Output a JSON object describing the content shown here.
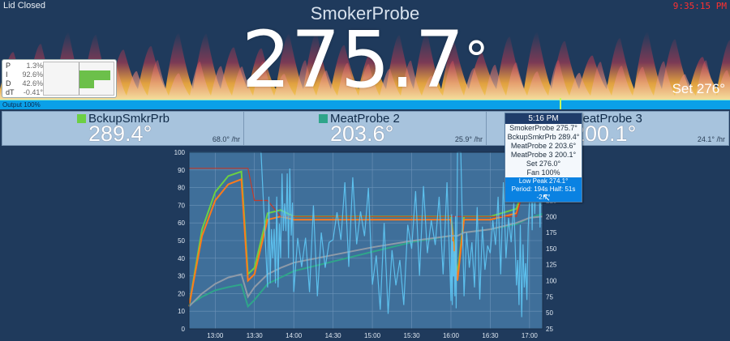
{
  "status": {
    "lid": "Lid Closed",
    "clock": "9:35:15 PM"
  },
  "hero": {
    "title": "SmokerProbe",
    "temperature": "275.7",
    "degree": "°",
    "setpoint": "Set 276°"
  },
  "pid": {
    "rows": [
      {
        "label": "P",
        "value": "1.3%"
      },
      {
        "label": "I",
        "value": "92.6%"
      },
      {
        "label": "D",
        "value": "42.6%"
      },
      {
        "label": "dT",
        "value": "-0.41°"
      }
    ],
    "bar_colors": {
      "fill": "#6cc04a",
      "frame": "#bbbbbb"
    }
  },
  "output": {
    "label": "Output 100%",
    "percent": 100,
    "marker_color": "#c7ff5c"
  },
  "probes": [
    {
      "name": "BckupSmkrPrb",
      "value": "289.4°",
      "rate": "68.0° /hr",
      "color": "#6cd043"
    },
    {
      "name": "MeatProbe 2",
      "value": "203.6°",
      "rate": "25.9° /hr",
      "color": "#2fa58a"
    },
    {
      "name": "MeatProbe 3",
      "value": "200.1°",
      "rate": "24.1° /hr",
      "color": "#8fb7d6"
    }
  ],
  "tooltip": {
    "time": "5:16 PM",
    "lines": [
      "SmokerProbe 275.7°",
      "BckupSmkrPrb 289.4°",
      "MeatProbe 2 203.6°",
      "MeatProbe 3 200.1°",
      "Set 276.0°",
      "Fan 100%"
    ],
    "peak1": "Low Peak 274.1°",
    "peak2": "Period: 194s Half: 51s -2.7°"
  },
  "chart_data": {
    "type": "line",
    "x": [
      "12:40",
      "12:50",
      "13:00",
      "13:10",
      "13:20",
      "13:25",
      "13:30",
      "13:40",
      "13:50",
      "14:00",
      "14:30",
      "15:00",
      "15:30",
      "16:00",
      "16:05",
      "16:10",
      "16:30",
      "16:50",
      "17:00",
      "17:10"
    ],
    "x_ticks": [
      "13:00",
      "13:30",
      "14:00",
      "14:30",
      "15:00",
      "15:30",
      "16:00",
      "16:30",
      "17:00"
    ],
    "left_ticks": [
      0,
      10,
      20,
      30,
      40,
      50,
      60,
      70,
      80,
      90,
      100
    ],
    "right_ticks": [
      25,
      50,
      75,
      100,
      125,
      150,
      175,
      200,
      225,
      250,
      275
    ],
    "ylim_left": [
      0,
      100
    ],
    "ylim_right": [
      25,
      300
    ],
    "series": [
      {
        "name": "BckupSmkrPrb",
        "axis": "right",
        "color": "#6cd043",
        "values": [
          60,
          180,
          238,
          263,
          270,
          110,
          120,
          205,
          210,
          200,
          200,
          200,
          200,
          200,
          110,
          200,
          200,
          212,
          280,
          285
        ]
      },
      {
        "name": "SmokerProbe",
        "axis": "right",
        "color": "#ff7a1a",
        "values": [
          60,
          170,
          225,
          250,
          258,
          100,
          110,
          195,
          200,
          195,
          195,
          195,
          195,
          195,
          100,
          195,
          195,
          205,
          270,
          276
        ]
      },
      {
        "name": "MeatProbe 2",
        "axis": "right",
        "color": "#2fa58a",
        "values": [
          62,
          75,
          85,
          90,
          94,
          60,
          70,
          95,
          105,
          115,
          130,
          145,
          160,
          170,
          170,
          175,
          180,
          188,
          198,
          204
        ]
      },
      {
        "name": "MeatProbe 3",
        "axis": "right",
        "color": "#8e9aa8",
        "values": [
          60,
          80,
          95,
          105,
          110,
          75,
          90,
          110,
          120,
          128,
          140,
          152,
          162,
          170,
          170,
          175,
          180,
          190,
          198,
          200
        ]
      },
      {
        "name": "Set",
        "axis": "right",
        "color": "#c23b2b",
        "values": [
          275,
          275,
          275,
          275,
          275,
          275,
          225,
          225,
          200,
          200,
          200,
          200,
          200,
          200,
          200,
          200,
          200,
          200,
          276,
          276
        ]
      },
      {
        "name": "Fan",
        "axis": "left",
        "color": "#5fc8f5",
        "values": [
          100,
          100,
          100,
          100,
          100,
          100,
          100,
          45,
          65,
          40,
          60,
          30,
          55,
          35,
          100,
          40,
          55,
          30,
          80,
          100
        ]
      }
    ],
    "fan_band_color": "#4a8cc0",
    "grid": true
  }
}
